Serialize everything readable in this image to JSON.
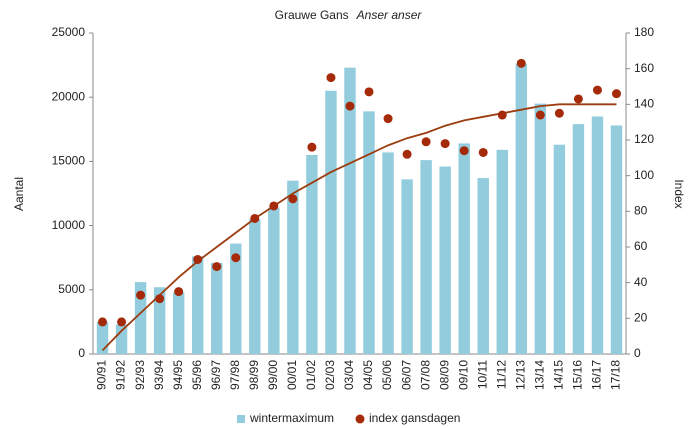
{
  "chart_data": {
    "type": "bar",
    "title": "Grauwe Gans",
    "title_italic": "Anser anser",
    "ylabel": "Aantal",
    "y2label": "Index",
    "categories": [
      "90/91",
      "91/92",
      "92/93",
      "93/94",
      "94/95",
      "95/96",
      "96/97",
      "97/98",
      "98/99",
      "99/00",
      "00/01",
      "01/02",
      "02/03",
      "03/04",
      "04/05",
      "05/06",
      "06/07",
      "07/08",
      "08/09",
      "09/10",
      "10/11",
      "11/12",
      "12/13",
      "13/14",
      "14/15",
      "15/16",
      "16/17",
      "17/18"
    ],
    "series": [
      {
        "name": "wintermaximum",
        "type": "bar",
        "color": "#93cddd",
        "values": [
          2500,
          2300,
          5600,
          5200,
          4800,
          7600,
          7100,
          8600,
          10500,
          11400,
          13500,
          15500,
          20500,
          22300,
          18900,
          15700,
          13600,
          15100,
          14600,
          16400,
          13700,
          15900,
          22600,
          19500,
          16300,
          17900,
          18500,
          17800
        ]
      },
      {
        "name": "index gansdagen",
        "type": "scatter",
        "axis": "y2",
        "color": "#a52a0a",
        "values": [
          18,
          18,
          33,
          31,
          35,
          53,
          49,
          54,
          76,
          83,
          87,
          116,
          155,
          139,
          147,
          132,
          112,
          119,
          118,
          114,
          113,
          134,
          163,
          134,
          135,
          143,
          148,
          146
        ]
      }
    ],
    "trendline": {
      "axis": "y2",
      "color": "#9c3d10",
      "values": [
        2,
        13,
        23,
        33,
        43,
        52,
        60,
        68,
        76,
        83,
        90,
        96,
        102,
        107,
        112,
        117,
        121,
        124,
        128,
        131,
        133,
        135,
        137,
        139,
        140,
        140,
        140,
        140
      ]
    },
    "ylim": [
      0,
      25000
    ],
    "yticks": [
      0,
      5000,
      10000,
      15000,
      20000,
      25000
    ],
    "y2lim": [
      0,
      180
    ],
    "y2ticks": [
      0,
      20,
      40,
      60,
      80,
      100,
      120,
      140,
      160,
      180
    ],
    "legend": "bottom"
  }
}
